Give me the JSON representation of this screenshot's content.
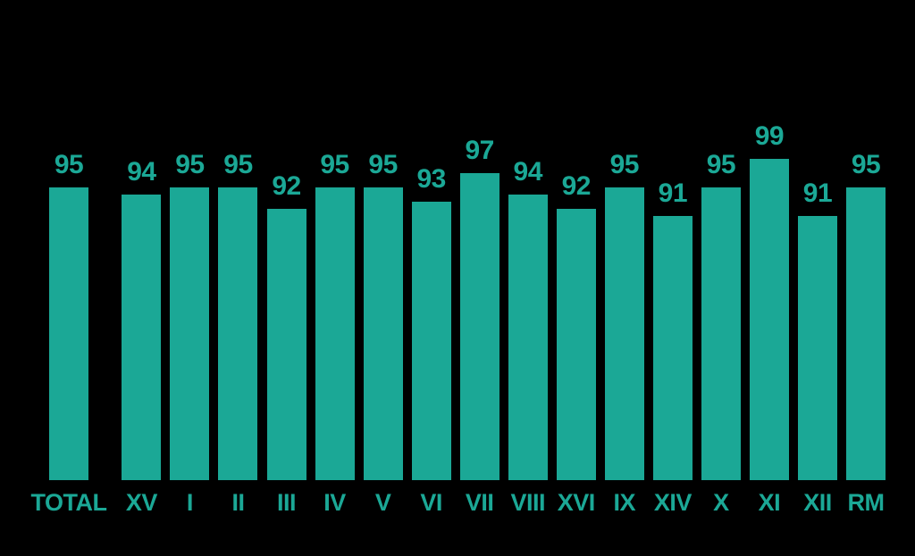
{
  "background_color": "#000000",
  "accent_color": "#1BA896",
  "chart_data": {
    "type": "bar",
    "title": "",
    "xlabel": "",
    "ylabel": "",
    "categories": [
      "TOTAL",
      "XV",
      "I",
      "II",
      "III",
      "IV",
      "V",
      "VI",
      "VII",
      "VIII",
      "XVI",
      "IX",
      "XIV",
      "X",
      "XI",
      "XII",
      "RM"
    ],
    "values": [
      95,
      94,
      95,
      95,
      92,
      95,
      95,
      93,
      97,
      94,
      92,
      95,
      91,
      95,
      99,
      91,
      95
    ],
    "bar_color": "#1BA896",
    "value_label_color": "#1BA896",
    "category_label_color": "#1BA896",
    "value_labels_shown": true,
    "legend": "none",
    "grid": false,
    "axes_visible": false,
    "ylim_visible_range": [
      54,
      100
    ]
  }
}
